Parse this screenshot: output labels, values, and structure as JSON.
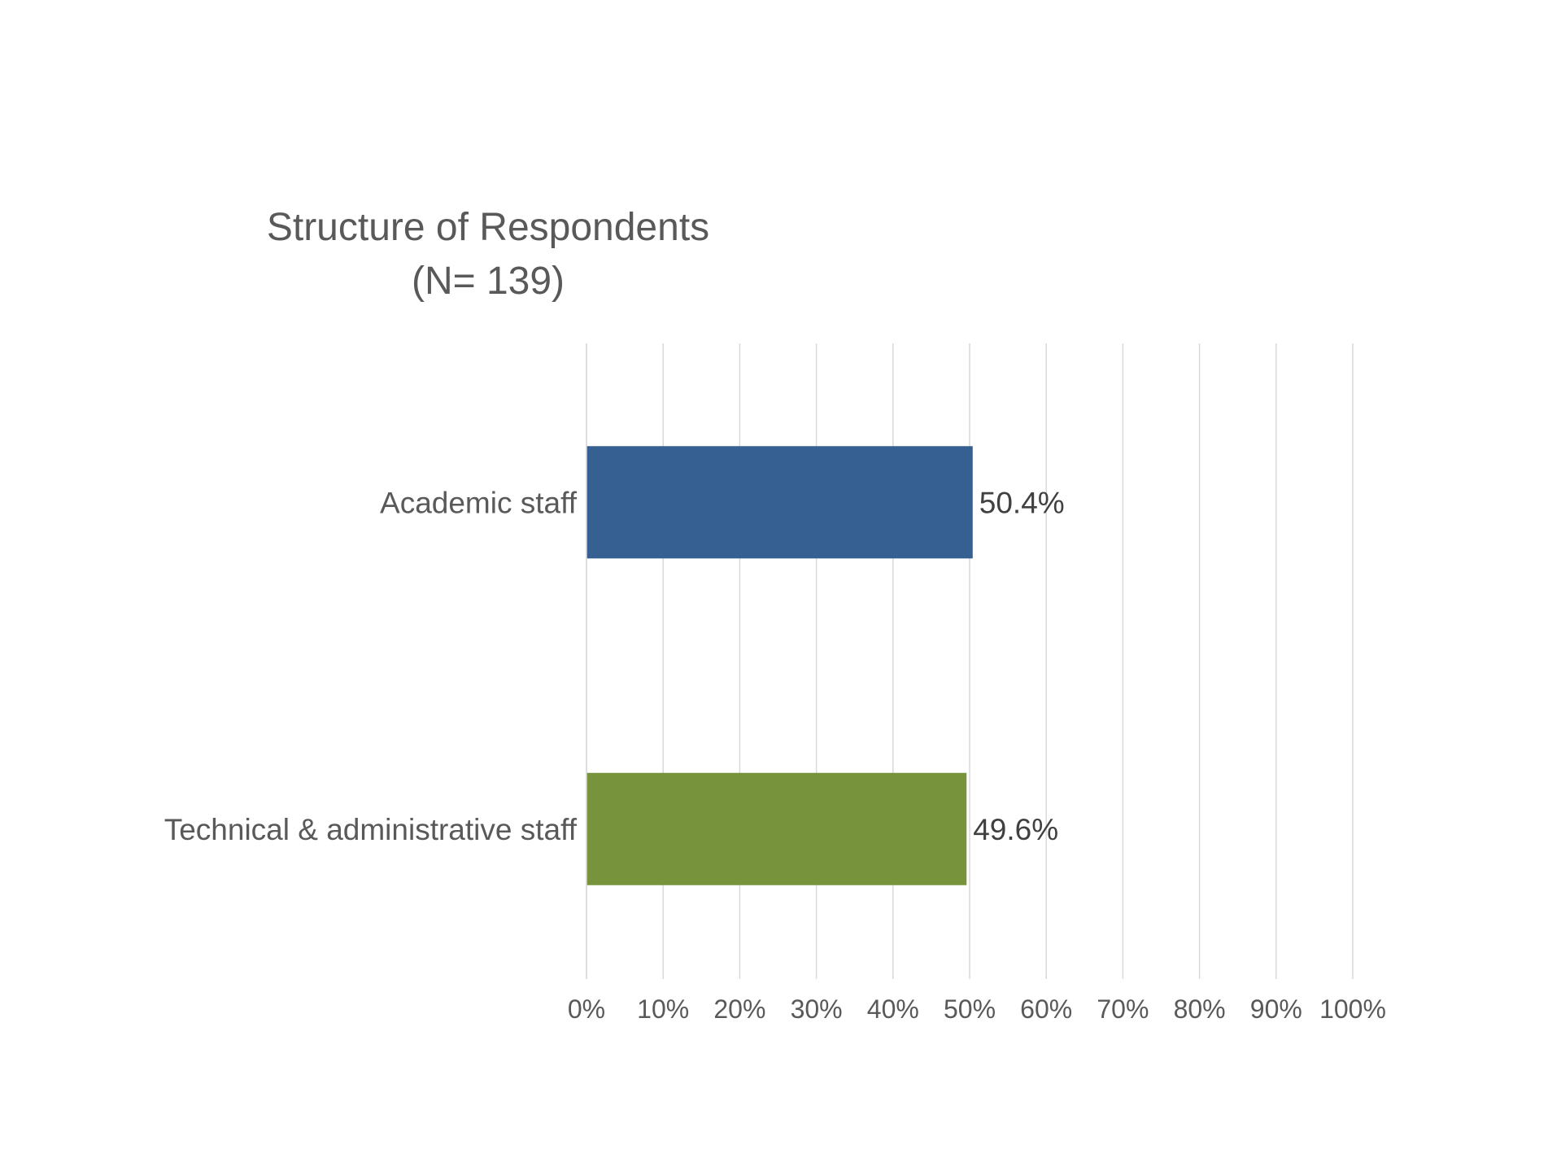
{
  "chart_data": {
    "type": "bar",
    "orientation": "horizontal",
    "title": "Structure of Respondents",
    "subtitle": "(N= 139)",
    "categories": [
      "Academic staff",
      "Technical & administrative staff"
    ],
    "values": [
      50.4,
      49.6
    ],
    "data_labels": [
      "50.4%",
      "49.6%"
    ],
    "colors": [
      "#376092",
      "#77933C"
    ],
    "xlim": [
      0,
      100
    ],
    "xticks": [
      0,
      10,
      20,
      30,
      40,
      50,
      60,
      70,
      80,
      90,
      100
    ],
    "xtick_labels": [
      "0%",
      "10%",
      "20%",
      "30%",
      "40%",
      "50%",
      "60%",
      "70%",
      "80%",
      "90%",
      "100%"
    ],
    "grid": true,
    "gridline_color": "#d9d9d9",
    "legend": "none"
  }
}
